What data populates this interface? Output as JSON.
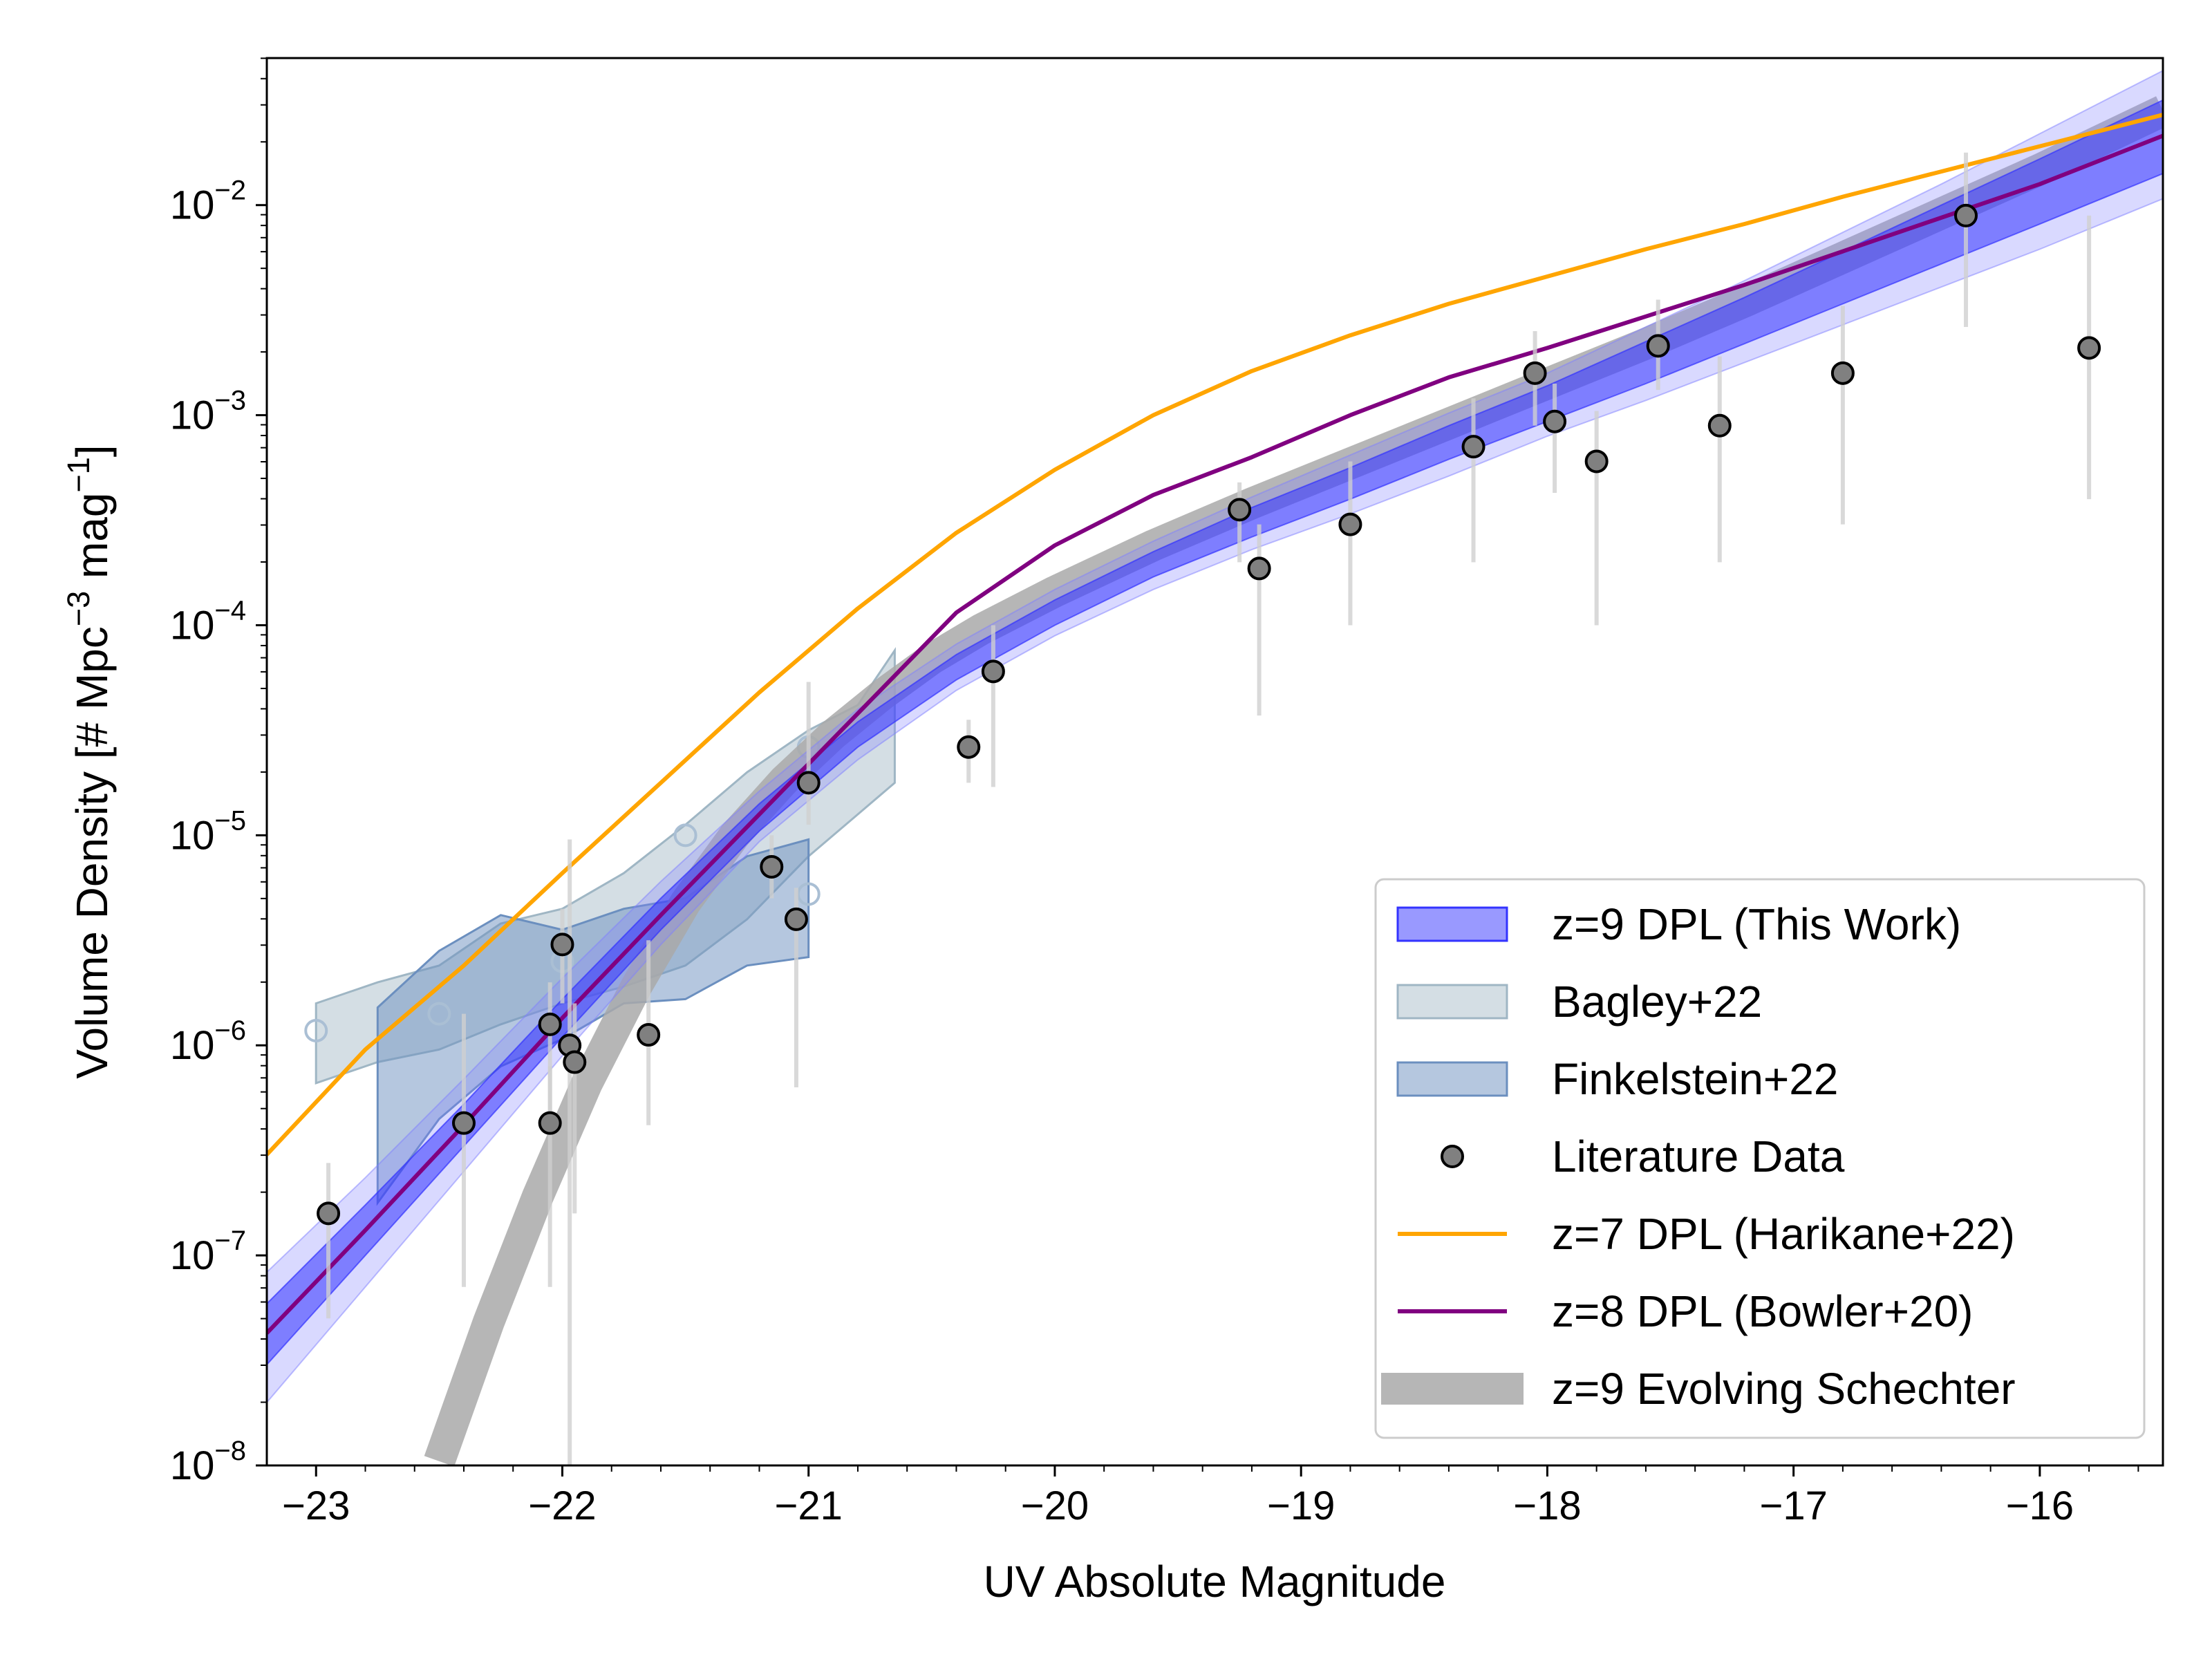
{
  "chart_data": {
    "type": "scatter",
    "xlabel": "UV Absolute Magnitude",
    "ylabel": "Volume Density [# Mpc",
    "ylabel_sup1": "−3",
    "ylabel_mid": " mag",
    "ylabel_sup2": "−1",
    "ylabel_end": "]",
    "xlim": [
      -23.2,
      -15.5
    ],
    "ylim_log10": [
      -8,
      -1.3
    ],
    "x_ticks": [
      {
        "v": -23,
        "label": "−23"
      },
      {
        "v": -22,
        "label": "−22"
      },
      {
        "v": -21,
        "label": "−21"
      },
      {
        "v": -20,
        "label": "−20"
      },
      {
        "v": -19,
        "label": "−19"
      },
      {
        "v": -18,
        "label": "−18"
      },
      {
        "v": -17,
        "label": "−17"
      },
      {
        "v": -16,
        "label": "−16"
      }
    ],
    "y_ticks": [
      {
        "v": -8,
        "base": "10",
        "exp": "−8"
      },
      {
        "v": -7,
        "base": "10",
        "exp": "−7"
      },
      {
        "v": -6,
        "base": "10",
        "exp": "−6"
      },
      {
        "v": -5,
        "base": "10",
        "exp": "−5"
      },
      {
        "v": -4,
        "base": "10",
        "exp": "−4"
      },
      {
        "v": -3,
        "base": "10",
        "exp": "−3"
      },
      {
        "v": -2,
        "base": "10",
        "exp": "−2"
      }
    ],
    "colors": {
      "this_work": "#3333ff",
      "bagley": "#9fb6c4",
      "finkelstein": "#6b8fbf",
      "literature": "#808080",
      "harikane": "#ffa500",
      "bowler": "#800080",
      "schechter": "#a9a9a9",
      "errorbar": "#d0d0d0"
    },
    "legend": [
      {
        "label": "z=9 DPL (This Work)",
        "kind": "this_work"
      },
      {
        "label": "Bagley+22",
        "kind": "bagley"
      },
      {
        "label": "Finkelstein+22",
        "kind": "finkelstein"
      },
      {
        "label": "Literature Data",
        "kind": "literature"
      },
      {
        "label": "z=7 DPL (Harikane+22)",
        "kind": "harikane"
      },
      {
        "label": "z=8 DPL (Bowler+20)",
        "kind": "bowler"
      },
      {
        "label": "z=9 Evolving Schechter",
        "kind": "schechter"
      }
    ],
    "legend_position": "lower-right",
    "series": {
      "harikane_z7": {
        "name": "z=7 DPL (Harikane+22)",
        "x": [
          -23.2,
          -22.8,
          -22.4,
          -22.0,
          -21.6,
          -21.2,
          -20.8,
          -20.4,
          -20.0,
          -19.6,
          -19.2,
          -18.8,
          -18.4,
          -18.0,
          -17.6,
          -17.2,
          -16.8,
          -16.4,
          -16.0,
          -15.5
        ],
        "log10y": [
          -6.52,
          -6.02,
          -5.62,
          -5.18,
          -4.75,
          -4.32,
          -3.92,
          -3.56,
          -3.26,
          -3.0,
          -2.79,
          -2.62,
          -2.47,
          -2.34,
          -2.21,
          -2.09,
          -1.96,
          -1.84,
          -1.72,
          -1.57
        ]
      },
      "bowler_z8": {
        "name": "z=8 DPL (Bowler+20)",
        "x": [
          -23.2,
          -22.8,
          -22.4,
          -22.0,
          -21.6,
          -21.2,
          -20.8,
          -20.4,
          -20.0,
          -19.6,
          -19.2,
          -18.8,
          -18.4,
          -18.0,
          -17.6,
          -17.2,
          -16.8,
          -16.4,
          -16.0,
          -15.5
        ],
        "log10y": [
          -7.37,
          -6.88,
          -6.38,
          -5.87,
          -5.38,
          -4.9,
          -4.42,
          -3.94,
          -3.62,
          -3.38,
          -3.2,
          -3.0,
          -2.82,
          -2.68,
          -2.53,
          -2.38,
          -2.22,
          -2.06,
          -1.9,
          -1.67
        ]
      },
      "this_work_z9": {
        "name": "z=9 DPL (This Work)",
        "x": [
          -23.2,
          -22.8,
          -22.4,
          -22.0,
          -21.6,
          -21.2,
          -20.8,
          -20.4,
          -20.0,
          -19.6,
          -19.2,
          -18.8,
          -18.4,
          -18.0,
          -17.6,
          -17.2,
          -16.8,
          -16.4,
          -16.0,
          -15.5
        ],
        "log10y_median": [
          -7.37,
          -6.88,
          -6.38,
          -5.87,
          -5.38,
          -4.92,
          -4.52,
          -4.2,
          -3.93,
          -3.7,
          -3.5,
          -3.32,
          -3.13,
          -2.94,
          -2.75,
          -2.55,
          -2.35,
          -2.15,
          -1.95,
          -1.68
        ],
        "log10y_lo1": [
          -7.52,
          -7.0,
          -6.48,
          -5.96,
          -5.45,
          -4.98,
          -4.58,
          -4.26,
          -4.0,
          -3.77,
          -3.58,
          -3.4,
          -3.21,
          -3.03,
          -2.85,
          -2.66,
          -2.47,
          -2.28,
          -2.09,
          -1.85
        ],
        "log10y_hi1": [
          -7.23,
          -6.76,
          -6.28,
          -5.78,
          -5.3,
          -4.85,
          -4.46,
          -4.14,
          -3.88,
          -3.65,
          -3.44,
          -3.25,
          -3.05,
          -2.86,
          -2.65,
          -2.44,
          -2.22,
          -2.0,
          -1.78,
          -1.5
        ],
        "log10y_lo2": [
          -7.7,
          -7.15,
          -6.6,
          -6.05,
          -5.52,
          -5.03,
          -4.64,
          -4.31,
          -4.05,
          -3.83,
          -3.64,
          -3.47,
          -3.29,
          -3.1,
          -2.93,
          -2.75,
          -2.57,
          -2.39,
          -2.21,
          -1.97
        ],
        "log10y_hi2": [
          -7.08,
          -6.63,
          -6.16,
          -5.68,
          -5.22,
          -4.79,
          -4.4,
          -4.09,
          -3.83,
          -3.6,
          -3.39,
          -3.19,
          -2.99,
          -2.8,
          -2.58,
          -2.36,
          -2.13,
          -1.9,
          -1.66,
          -1.36
        ]
      },
      "schechter_z9": {
        "name": "z=9 Evolving Schechter",
        "x": [
          -22.5,
          -22.3,
          -22.1,
          -21.9,
          -21.7,
          -21.5,
          -21.3,
          -21.1,
          -20.9,
          -20.7,
          -20.5,
          -20.3,
          -20.0,
          -19.6,
          -19.2,
          -18.8,
          -18.4,
          -18.0,
          -17.6,
          -17.2,
          -16.8,
          -16.4,
          -16.0,
          -15.5
        ],
        "log10y": [
          -7.98,
          -7.32,
          -6.72,
          -6.18,
          -5.72,
          -5.32,
          -5.0,
          -4.74,
          -4.52,
          -4.33,
          -4.16,
          -4.02,
          -3.84,
          -3.62,
          -3.42,
          -3.23,
          -3.04,
          -2.85,
          -2.66,
          -2.46,
          -2.25,
          -2.04,
          -1.83,
          -1.55
        ]
      },
      "bagley": {
        "name": "Bagley+22",
        "x": [
          -23.0,
          -22.75,
          -22.5,
          -22.25,
          -22.0,
          -21.75,
          -21.5,
          -21.25,
          -21.0,
          -20.8,
          -20.65
        ],
        "log10y_lo": [
          -6.18,
          -6.08,
          -6.02,
          -5.9,
          -5.8,
          -5.72,
          -5.62,
          -5.4,
          -5.1,
          -4.9,
          -4.75
        ],
        "log10y_hi": [
          -5.8,
          -5.7,
          -5.62,
          -5.42,
          -5.35,
          -5.18,
          -4.95,
          -4.7,
          -4.5,
          -4.38,
          -4.12
        ]
      },
      "bagley_points": {
        "x": [
          -23.0,
          -22.5,
          -22.0,
          -21.5,
          -21.0,
          -21.0
        ],
        "log10y": [
          -5.93,
          -5.85,
          -5.6,
          -5.0,
          -4.58,
          -5.28
        ]
      },
      "finkelstein": {
        "name": "Finkelstein+22",
        "x": [
          -22.75,
          -22.5,
          -22.25,
          -22.0,
          -21.75,
          -21.5,
          -21.25,
          -21.0
        ],
        "log10y_lo": [
          -6.75,
          -6.35,
          -6.1,
          -5.97,
          -5.8,
          -5.78,
          -5.62,
          -5.58
        ],
        "log10y_hi": [
          -5.82,
          -5.55,
          -5.38,
          -5.45,
          -5.35,
          -5.3,
          -5.1,
          -5.02
        ]
      },
      "literature": {
        "name": "Literature Data",
        "points": [
          {
            "x": -22.95,
            "y": -6.8,
            "lo": -7.3,
            "hi": -6.56
          },
          {
            "x": -22.4,
            "y": -6.37,
            "lo": -7.15,
            "hi": -5.85
          },
          {
            "x": -22.05,
            "y": -5.9,
            "lo": -6.4,
            "hi": -5.7
          },
          {
            "x": -22.05,
            "y": -6.37,
            "lo": -7.15,
            "hi": -6.1
          },
          {
            "x": -22.0,
            "y": -5.52,
            "lo": -5.8,
            "hi": -5.35
          },
          {
            "x": -21.97,
            "y": -6.0,
            "lo": -8.0,
            "hi": -5.02
          },
          {
            "x": -21.95,
            "y": -6.08,
            "lo": -6.8,
            "hi": -5.8
          },
          {
            "x": -21.65,
            "y": -5.95,
            "lo": -6.38,
            "hi": -5.5
          },
          {
            "x": -21.15,
            "y": -5.15,
            "lo": -5.3,
            "hi": -5.0
          },
          {
            "x": -21.05,
            "y": -5.4,
            "lo": -6.2,
            "hi": -5.25
          },
          {
            "x": -21.0,
            "y": -4.75,
            "lo": -4.95,
            "hi": -4.27
          },
          {
            "x": -20.35,
            "y": -4.58,
            "lo": -4.75,
            "hi": -4.45
          },
          {
            "x": -20.25,
            "y": -4.22,
            "lo": -4.77,
            "hi": -4.0
          },
          {
            "x": -19.25,
            "y": -3.45,
            "lo": -3.7,
            "hi": -3.32
          },
          {
            "x": -19.17,
            "y": -3.73,
            "lo": -4.43,
            "hi": -3.52
          },
          {
            "x": -18.8,
            "y": -3.52,
            "lo": -4.0,
            "hi": -3.22
          },
          {
            "x": -18.3,
            "y": -3.15,
            "lo": -3.7,
            "hi": -2.92
          },
          {
            "x": -18.05,
            "y": -2.8,
            "lo": -3.05,
            "hi": -2.6
          },
          {
            "x": -17.97,
            "y": -3.03,
            "lo": -3.37,
            "hi": -2.85
          },
          {
            "x": -17.8,
            "y": -3.22,
            "lo": -4.0,
            "hi": -2.98
          },
          {
            "x": -17.55,
            "y": -2.67,
            "lo": -2.88,
            "hi": -2.45
          },
          {
            "x": -17.3,
            "y": -3.05,
            "lo": -3.7,
            "hi": -2.72
          },
          {
            "x": -16.8,
            "y": -2.8,
            "lo": -3.52,
            "hi": -2.48
          },
          {
            "x": -16.3,
            "y": -2.05,
            "lo": -2.58,
            "hi": -1.75
          },
          {
            "x": -15.8,
            "y": -2.68,
            "lo": -3.4,
            "hi": -2.05
          }
        ]
      }
    }
  }
}
